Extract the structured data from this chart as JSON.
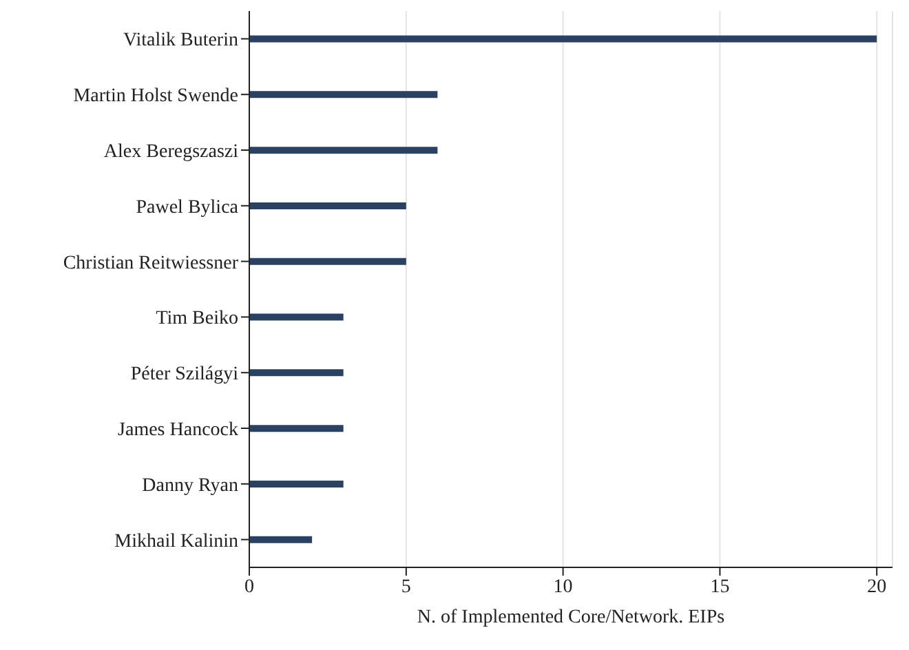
{
  "chart_data": {
    "type": "bar",
    "orientation": "horizontal",
    "xlabel": "N. of Implemented Core/Network. EIPs",
    "categories": [
      "Vitalik Buterin",
      "Martin Holst Swende",
      "Alex Beregszaszi",
      "Pawel Bylica",
      "Christian Reitwiessner",
      "Tim Beiko",
      "Péter Szilágyi",
      "James Hancock",
      "Danny Ryan",
      "Mikhail Kalinin"
    ],
    "values": [
      20,
      6,
      6,
      5,
      5,
      3,
      3,
      3,
      3,
      2
    ],
    "color": "#2b4162",
    "xlim": [
      0,
      20.5
    ],
    "xticks": [
      0,
      5,
      10,
      15,
      20
    ],
    "grid": "x"
  }
}
